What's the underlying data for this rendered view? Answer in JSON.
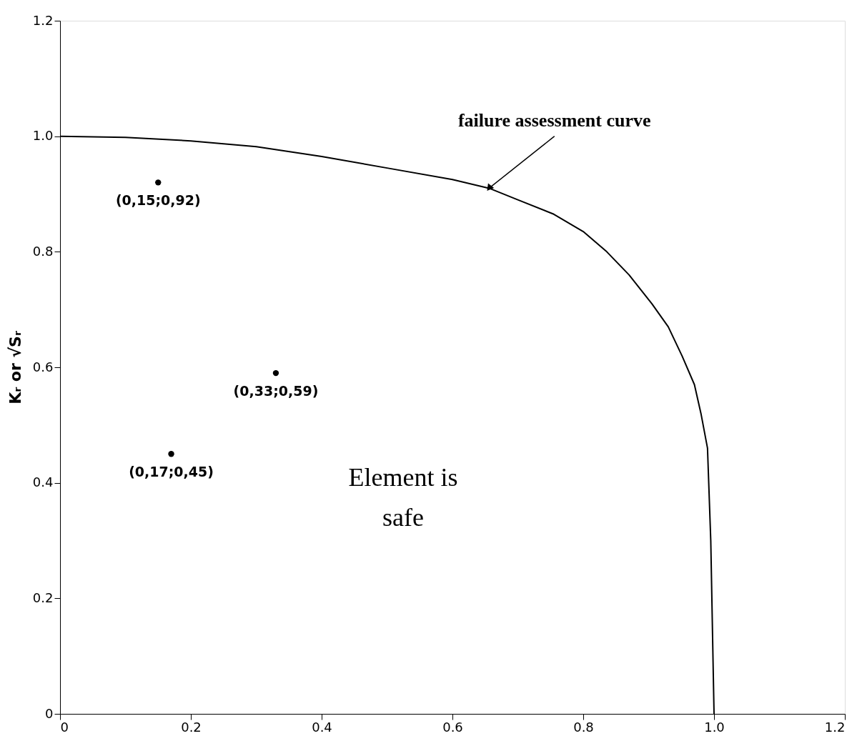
{
  "chart_data": {
    "type": "scatter",
    "ylabel": "Kᵣ or √Sᵣ",
    "series": [
      {
        "type": "line",
        "color": "#000000",
        "marker": "none",
        "x": [
          0,
          0.1,
          0.2,
          0.3,
          0.4,
          0.5,
          0.6,
          0.656,
          0.7,
          0.755,
          0.8,
          0.836,
          0.87,
          0.905,
          0.93,
          0.951,
          0.97,
          0.98,
          0.99,
          0.995,
          1.0
        ],
        "values": [
          1.0,
          0.998,
          0.992,
          0.982,
          0.965,
          0.945,
          0.925,
          0.91,
          0.89,
          0.865,
          0.835,
          0.8,
          0.76,
          0.71,
          0.67,
          0.62,
          0.57,
          0.52,
          0.46,
          0.3,
          0.0
        ]
      },
      {
        "color": "#000000",
        "marker": "circle",
        "x": [
          0.15,
          0.33,
          0.17
        ],
        "values": [
          0.92,
          0.59,
          0.45
        ],
        "value_labels": [
          "(0,15;0,92)",
          "(0,33;0,59)",
          "(0,17;0,45)"
        ]
      }
    ],
    "annotations": [
      {
        "text": "failure assessment curve",
        "x": 0.656,
        "y": 0.91
      },
      "Element is safe"
    ],
    "xlim": [
      0,
      1.2
    ],
    "ylim": [
      0,
      1.2
    ],
    "xticks": [
      0,
      0.2,
      0.4,
      0.6,
      0.8,
      {
        "value": 1.0,
        "label": "1.0"
      },
      1.2
    ],
    "yticks": [
      0,
      0.2,
      0.4,
      0.6,
      0.8,
      {
        "value": 1.0,
        "label": "1.0"
      },
      1.2
    ],
    "grid": false
  }
}
